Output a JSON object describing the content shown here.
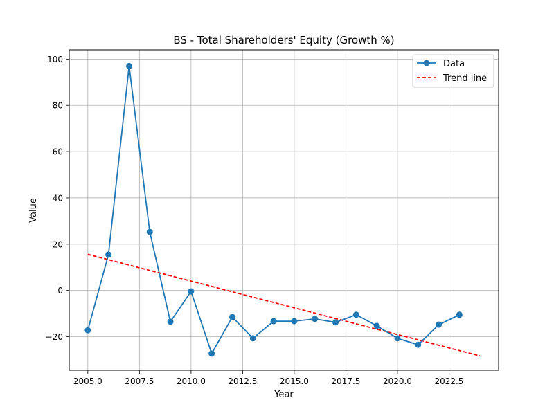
{
  "chart_data": {
    "type": "line",
    "title": "BS - Total Shareholders' Equity (Growth %)",
    "xlabel": "Year",
    "ylabel": "Value",
    "xlim": [
      2004.1,
      2024.9
    ],
    "ylim": [
      -34.5,
      104
    ],
    "x_ticks": [
      2005.0,
      2007.5,
      2010.0,
      2012.5,
      2015.0,
      2017.5,
      2020.0,
      2022.5
    ],
    "x_tick_labels": [
      "2005.0",
      "2007.5",
      "2010.0",
      "2012.5",
      "2015.0",
      "2017.5",
      "2020.0",
      "2022.5"
    ],
    "y_ticks": [
      -20,
      0,
      20,
      40,
      60,
      80,
      100
    ],
    "y_tick_labels": [
      "−20",
      "0",
      "20",
      "40",
      "60",
      "80",
      "100"
    ],
    "grid": true,
    "legend_position": "top-right",
    "series": [
      {
        "name": "Data",
        "style": "solid-with-markers",
        "color": "#1f77b4",
        "x": [
          2005,
          2006,
          2007,
          2008,
          2009,
          2010,
          2011,
          2012,
          2013,
          2014,
          2015,
          2016,
          2017,
          2018,
          2019,
          2020,
          2021,
          2022,
          2023
        ],
        "values": [
          -17.2,
          15.5,
          97.0,
          25.3,
          -13.5,
          -0.4,
          -27.3,
          -11.5,
          -20.7,
          -13.3,
          -13.3,
          -12.3,
          -13.8,
          -10.5,
          -15.3,
          -20.7,
          -23.5,
          -14.8,
          -10.5
        ]
      },
      {
        "name": "Trend line",
        "style": "dashed",
        "color": "#ff0000",
        "x": [
          2005,
          2024
        ],
        "values": [
          15.6,
          -28.3
        ]
      }
    ]
  }
}
